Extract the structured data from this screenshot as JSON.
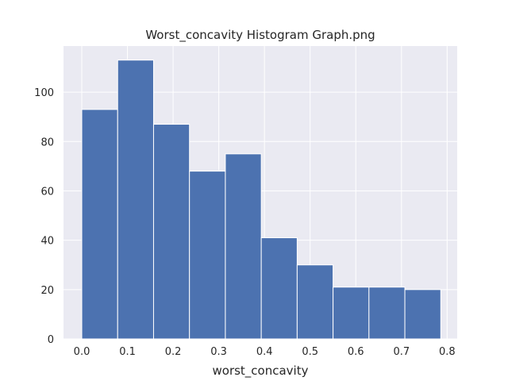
{
  "chart_data": {
    "type": "bar",
    "title": "Worst_concavity Histogram Graph.png",
    "xlabel": "worst_concavity",
    "ylabel": "",
    "xlim": [
      -0.04,
      0.822
    ],
    "ylim": [
      0,
      118.7
    ],
    "xticks": [
      0.0,
      0.1,
      0.2,
      0.3,
      0.4,
      0.5,
      0.6,
      0.7,
      0.8
    ],
    "xtick_labels": [
      "0.0",
      "0.1",
      "0.2",
      "0.3",
      "0.4",
      "0.5",
      "0.6",
      "0.7",
      "0.8"
    ],
    "yticks": [
      0,
      20,
      40,
      60,
      80,
      100
    ],
    "ytick_labels": [
      "0",
      "20",
      "40",
      "60",
      "80",
      "100"
    ],
    "grid": true,
    "bin_edges": [
      0.0,
      0.0786,
      0.1572,
      0.2358,
      0.3144,
      0.393,
      0.4716,
      0.5502,
      0.6288,
      0.7074,
      0.786
    ],
    "values": [
      93,
      113,
      87,
      68,
      75,
      41,
      30,
      21,
      21,
      20
    ],
    "colors": {
      "background": "#EAEAF2",
      "bar": "#4C72B0",
      "bar_edge": "#FFFFFF",
      "grid": "#FFFFFF",
      "text": "#262626"
    }
  }
}
